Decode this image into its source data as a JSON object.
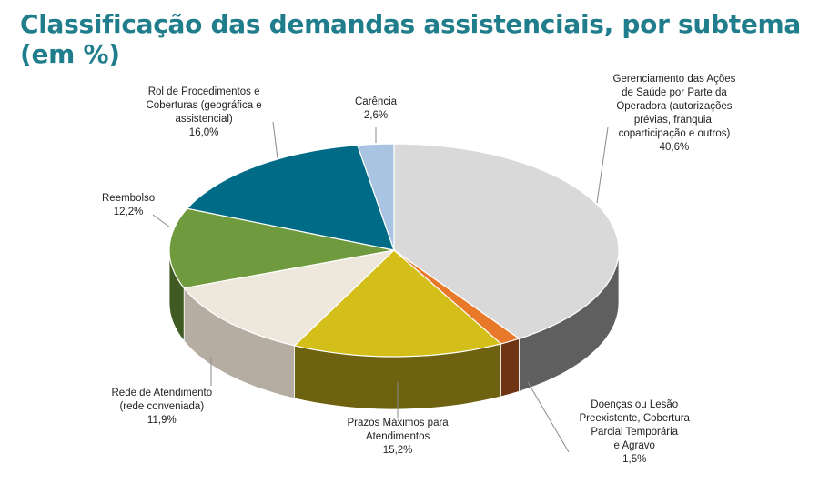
{
  "title": "Classificação das demandas assistenciais, por subtema (em %)",
  "chart_data": {
    "type": "pie",
    "title": "Classificação das demandas assistenciais, por subtema (em %)",
    "unit": "%",
    "slices": [
      {
        "lines": [
          "Gerenciamento das Ações",
          "de Saúde por Parte da",
          "Operadora (autorizações",
          "prévias, franquia,",
          "coparticipação  e outros)"
        ],
        "value_label": "40,6%",
        "value": 40.6,
        "color": "#d9d9d9",
        "side": "#5f5f5f"
      },
      {
        "lines": [
          "Doenças ou Lesão",
          "Preexistente, Cobertura",
          "Parcial Temporária",
          "e Agravo"
        ],
        "value_label": "1,5%",
        "value": 1.5,
        "color": "#e8782a",
        "side": "#6e3414"
      },
      {
        "lines": [
          "Prazos Máximos para",
          "Atendimentos"
        ],
        "value_label": "15,2%",
        "value": 15.2,
        "color": "#d4be1a",
        "side": "#6e6210"
      },
      {
        "lines": [
          "Rede de Atendimento",
          "(rede conveniada)"
        ],
        "value_label": "11,9%",
        "value": 11.9,
        "color": "#eee7dc",
        "side": "#b6ada2"
      },
      {
        "lines": [
          "Reembolso"
        ],
        "value_label": "12,2%",
        "value": 12.2,
        "color": "#6f9a3e",
        "side": "#3f5a22"
      },
      {
        "lines": [
          "Rol de Procedimentos e",
          "Coberturas (geográfica e",
          "assistencial)"
        ],
        "value_label": "16,0%",
        "value": 16.0,
        "color": "#006b86",
        "side": "#003c4b"
      },
      {
        "lines": [
          "Carência"
        ],
        "value_label": "2,6%",
        "value": 2.6,
        "color": "#a9c4e2",
        "side": "#5d7489"
      }
    ]
  }
}
